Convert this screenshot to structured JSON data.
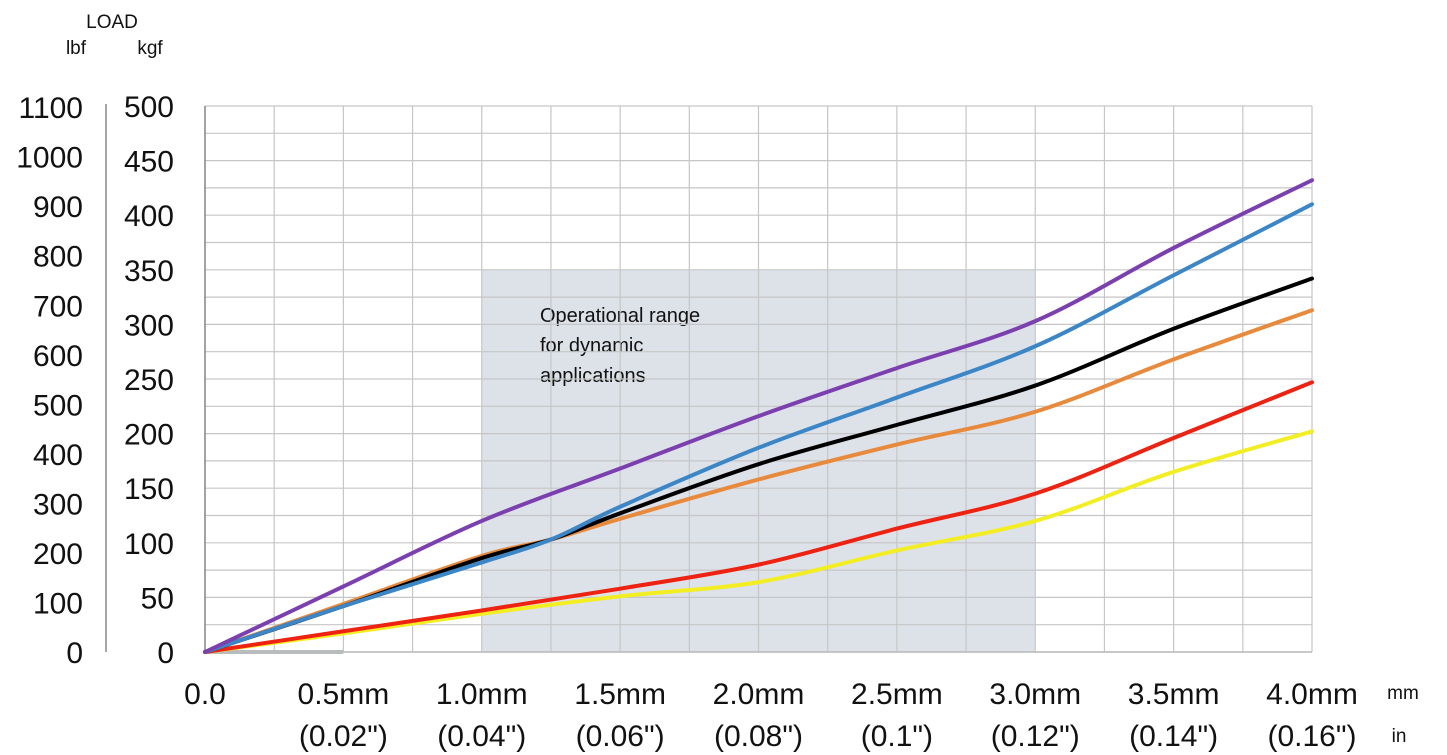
{
  "chart_data": {
    "type": "line",
    "axis_title": "LOAD",
    "y_units": {
      "left": "lbf",
      "right": "kgf"
    },
    "x_units": {
      "mm": "mm",
      "in": "in"
    },
    "xlim": [
      0,
      4.0
    ],
    "ylim_kgf": [
      0,
      500
    ],
    "grid": true,
    "x_ticks": [
      {
        "value": 0.0,
        "mm": "0.0",
        "in": ""
      },
      {
        "value": 0.5,
        "mm": "0.5mm",
        "in": "(0.02\")"
      },
      {
        "value": 1.0,
        "mm": "1.0mm",
        "in": "(0.04\")"
      },
      {
        "value": 1.5,
        "mm": "1.5mm",
        "in": "(0.06\")"
      },
      {
        "value": 2.0,
        "mm": "2.0mm",
        "in": "(0.08\")"
      },
      {
        "value": 2.5,
        "mm": "2.5mm",
        "in": "(0.1\")"
      },
      {
        "value": 3.0,
        "mm": "3.0mm",
        "in": "(0.12\")"
      },
      {
        "value": 3.5,
        "mm": "3.5mm",
        "in": "(0.14\")"
      },
      {
        "value": 4.0,
        "mm": "4.0mm",
        "in": "(0.16\")"
      }
    ],
    "y_ticks_kgf": [
      0,
      50,
      100,
      150,
      200,
      250,
      300,
      350,
      400,
      450,
      500
    ],
    "y_ticks_lbf": [
      {
        "value": 0,
        "kgf": 0
      },
      {
        "value": 100,
        "kgf": 45.36
      },
      {
        "value": 200,
        "kgf": 90.72
      },
      {
        "value": 300,
        "kgf": 136.08
      },
      {
        "value": 400,
        "kgf": 181.44
      },
      {
        "value": 500,
        "kgf": 226.8
      },
      {
        "value": 600,
        "kgf": 272.16
      },
      {
        "value": 700,
        "kgf": 317.51
      },
      {
        "value": 800,
        "kgf": 362.87
      },
      {
        "value": 900,
        "kgf": 408.23
      },
      {
        "value": 1000,
        "kgf": 453.59
      },
      {
        "value": 1100,
        "kgf": 498.95
      }
    ],
    "shaded_region": {
      "x": [
        1.0,
        3.0
      ],
      "y_kgf": [
        0,
        350
      ],
      "label_lines": [
        "Operational range",
        "for dynamic",
        "applications"
      ],
      "color": "#dde1e8"
    },
    "series": [
      {
        "color": "#7b3fb0",
        "x": [
          0,
          0.5,
          1.0,
          1.5,
          2.0,
          2.5,
          3.0,
          3.5,
          4.0
        ],
        "y": [
          0,
          60,
          120,
          168,
          216,
          260,
          303,
          370,
          432
        ]
      },
      {
        "color": "#3b86c7",
        "x": [
          0,
          0.5,
          1.0,
          1.25,
          1.5,
          2.0,
          2.5,
          3.0,
          3.5,
          4.0
        ],
        "y": [
          0,
          42,
          82,
          103,
          133,
          187,
          233,
          280,
          345,
          410
        ]
      },
      {
        "color": "#000000",
        "x": [
          0,
          0.5,
          1.0,
          1.25,
          1.5,
          2.0,
          2.5,
          3.0,
          3.5,
          4.0
        ],
        "y": [
          0,
          42,
          86,
          103,
          127,
          172,
          208,
          244,
          296,
          342
        ]
      },
      {
        "color": "#e88a3c",
        "x": [
          0,
          0.5,
          1.0,
          1.25,
          1.5,
          2.0,
          2.5,
          3.0,
          3.5,
          4.0
        ],
        "y": [
          0,
          44,
          88,
          103,
          122,
          158,
          190,
          220,
          268,
          313
        ]
      },
      {
        "color": "#ee2211",
        "x": [
          0,
          0.5,
          1.0,
          1.5,
          2.0,
          2.5,
          3.0,
          3.5,
          4.0
        ],
        "y": [
          0,
          19,
          38,
          58,
          80,
          113,
          145,
          196,
          247
        ]
      },
      {
        "color": "#f2ee22",
        "x": [
          0,
          0.5,
          1.0,
          1.5,
          2.0,
          2.5,
          3.0,
          3.5,
          4.0
        ],
        "y": [
          0,
          17,
          35,
          51,
          64,
          93,
          120,
          165,
          202
        ]
      }
    ],
    "baseline_color": "#b8bcbc"
  }
}
